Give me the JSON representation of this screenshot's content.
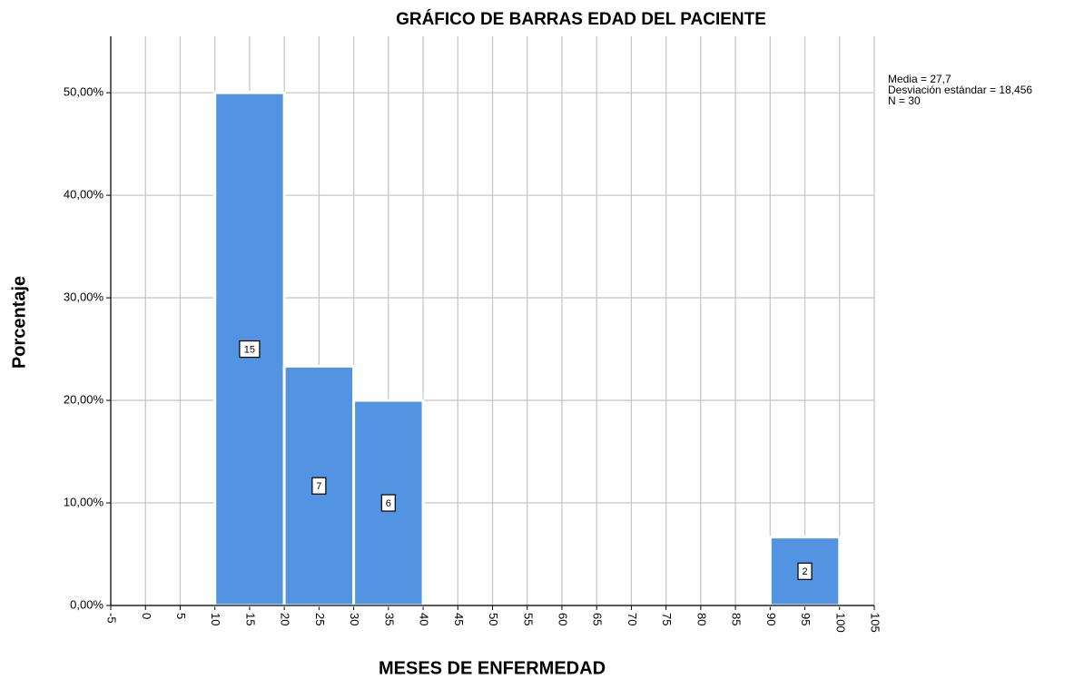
{
  "chart_data": {
    "type": "histogram",
    "title": "GRÁFICO DE BARRAS EDAD DEL PACIENTE",
    "xlabel": "MESES DE ENFERMEDAD",
    "ylabel": "Porcentaje",
    "bins": [
      10,
      20,
      30,
      40,
      90,
      100
    ],
    "values": [
      50,
      23.33,
      20,
      0,
      6.67
    ],
    "counts": [
      15,
      7,
      6,
      null,
      2
    ],
    "color": "#5294e2",
    "xlim": [
      -5,
      105
    ],
    "xticks": [
      -5,
      0,
      5,
      10,
      15,
      20,
      25,
      30,
      35,
      40,
      45,
      50,
      55,
      60,
      65,
      70,
      75,
      80,
      85,
      90,
      95,
      100,
      105
    ],
    "ylim": [
      0,
      55.5
    ],
    "yticks": [
      {
        "value": 0,
        "label": "0,00%"
      },
      {
        "value": 10,
        "label": "10,00%"
      },
      {
        "value": 20,
        "label": "20,00%"
      },
      {
        "value": 30,
        "label": "30,00%"
      },
      {
        "value": 40,
        "label": "40,00%"
      },
      {
        "value": 50,
        "label": "50,00%"
      }
    ],
    "grid": true,
    "annotations": [
      "Media = 27,7",
      "Desviación estándar = 18,456",
      "N = 30"
    ]
  }
}
